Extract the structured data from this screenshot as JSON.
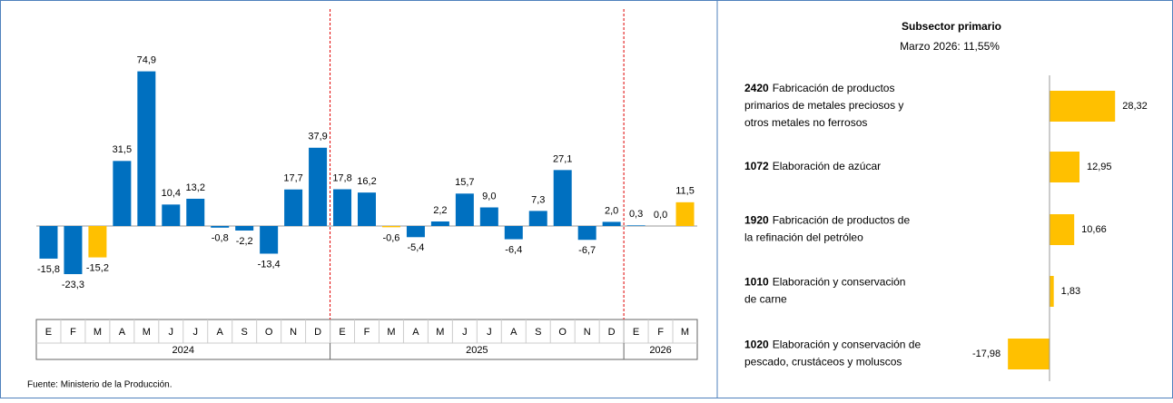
{
  "chart_data": [
    {
      "type": "bar",
      "categories": [
        "E",
        "F",
        "M",
        "A",
        "M",
        "J",
        "J",
        "A",
        "S",
        "O",
        "N",
        "D",
        "E",
        "F",
        "M",
        "A",
        "M",
        "J",
        "J",
        "A",
        "S",
        "O",
        "N",
        "D",
        "E",
        "F",
        "M"
      ],
      "groups": [
        {
          "name": "2024",
          "count": 12
        },
        {
          "name": "2025",
          "count": 12
        },
        {
          "name": "2026",
          "count": 3
        }
      ],
      "values": [
        -15.8,
        -23.3,
        -15.2,
        31.5,
        74.9,
        10.4,
        13.2,
        -0.8,
        -2.2,
        -13.4,
        17.7,
        37.9,
        17.8,
        16.2,
        -0.6,
        -5.4,
        2.2,
        15.7,
        9.0,
        -6.4,
        7.3,
        27.1,
        -6.7,
        2.0,
        0.3,
        0.0,
        11.5
      ],
      "value_labels": [
        "-15,8",
        "-23,3",
        "-15,2",
        "31,5",
        "74,9",
        "10,4",
        "13,2",
        "-0,8",
        "-2,2",
        "-13,4",
        "17,7",
        "37,9",
        "17,8",
        "16,2",
        "-0,6",
        "-5,4",
        "2,2",
        "15,7",
        "9,0",
        "-6,4",
        "7,3",
        "27,1",
        "-6,7",
        "2,0",
        "0,3",
        "0,0",
        "11,5"
      ],
      "colors": [
        "#0070c0",
        "#0070c0",
        "#ffc000",
        "#0070c0",
        "#0070c0",
        "#0070c0",
        "#0070c0",
        "#0070c0",
        "#0070c0",
        "#0070c0",
        "#0070c0",
        "#0070c0",
        "#0070c0",
        "#0070c0",
        "#ffc000",
        "#0070c0",
        "#0070c0",
        "#0070c0",
        "#0070c0",
        "#0070c0",
        "#0070c0",
        "#0070c0",
        "#0070c0",
        "#0070c0",
        "#0070c0",
        "#0070c0",
        "#ffc000"
      ],
      "ylim": [
        -40,
        80
      ],
      "source": "Fuente: Ministerio de la Producción."
    },
    {
      "type": "hbar",
      "title": "Subsector primario",
      "subtitle": "Marzo 2026: 11,55%",
      "categories": [
        {
          "code": "2420",
          "lines": [
            "Fabricación de productos",
            "primarios de metales preciosos y",
            "otros metales no ferrosos"
          ]
        },
        {
          "code": "1072",
          "lines": [
            "Elaboración de azúcar"
          ]
        },
        {
          "code": "1920",
          "lines": [
            "Fabricación de productos de",
            "la refinación del petróleo"
          ]
        },
        {
          "code": "1010",
          "lines": [
            "Elaboración y conservación",
            "de carne"
          ]
        },
        {
          "code": "1020",
          "lines": [
            "Elaboración y conservación de",
            "pescado, crustáceos y moluscos"
          ]
        }
      ],
      "values": [
        28.32,
        12.95,
        10.66,
        1.83,
        -17.98
      ],
      "value_labels": [
        "28,32",
        "12,95",
        "10,66",
        "1,83",
        "-17,98"
      ],
      "color": "#ffc000",
      "xlim": [
        -20,
        40
      ]
    }
  ]
}
